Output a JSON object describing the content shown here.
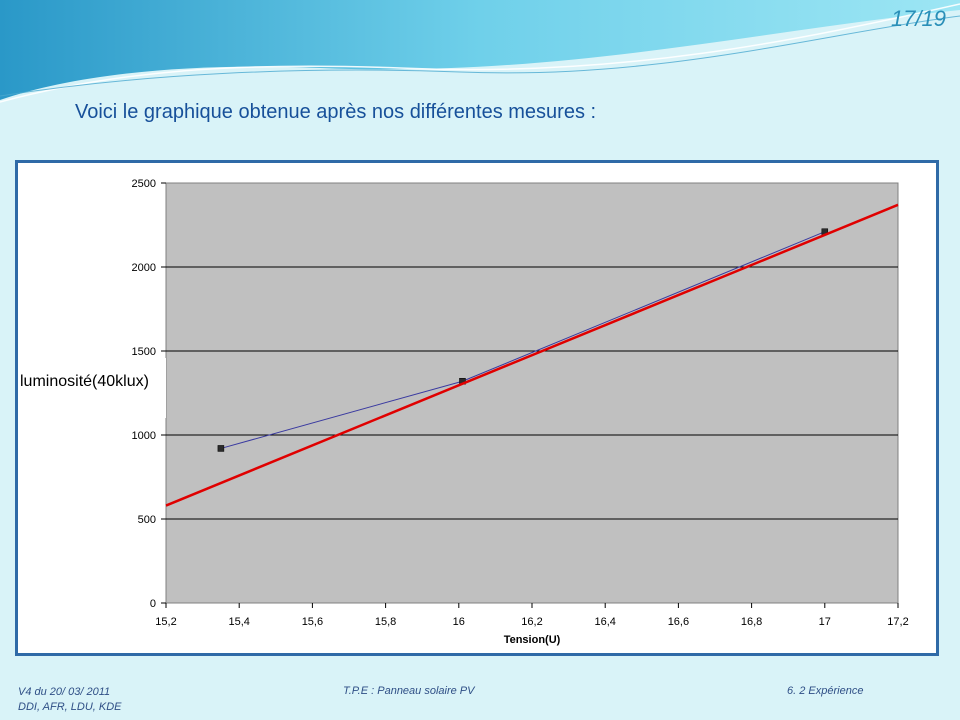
{
  "slide": {
    "page_number": "17/19",
    "title": "Voici le graphique obtenue après nos différentes mesures :"
  },
  "footer": {
    "left_line1": "V4 du  20/ 03/ 2011",
    "left_line2": "DDI, AFR, LDU, KDE",
    "center": "T.P.E : Panneau solaire PV",
    "right": "6. 2 Expérience"
  },
  "colors": {
    "background": "#d9f3f8",
    "plot_area": "#c0c0c0",
    "frame_border": "#2f6aa7",
    "series_line": "#3a3aa0",
    "trend_line": "#e00000",
    "title_text": "#17509a"
  },
  "chart_data": {
    "type": "scatter",
    "xlabel": "Tension(U)",
    "ylabel": "luminosité(40klux)",
    "xlim": [
      15.2,
      17.2
    ],
    "ylim": [
      0,
      2500
    ],
    "x_ticks": [
      "15,2",
      "15,4",
      "15,6",
      "15,8",
      "16",
      "16,2",
      "16,4",
      "16,6",
      "16,8",
      "17",
      "17,2"
    ],
    "y_ticks": [
      "0",
      "500",
      "1000",
      "1500",
      "2000",
      "2500"
    ],
    "grid": "horizontal",
    "series": [
      {
        "x": [
          15.35,
          16.01,
          17.0
        ],
        "y": [
          920,
          1320,
          2210
        ]
      }
    ],
    "trendline": {
      "type": "linear",
      "x": [
        15.2,
        17.2
      ],
      "y": [
        580,
        2370
      ]
    }
  }
}
